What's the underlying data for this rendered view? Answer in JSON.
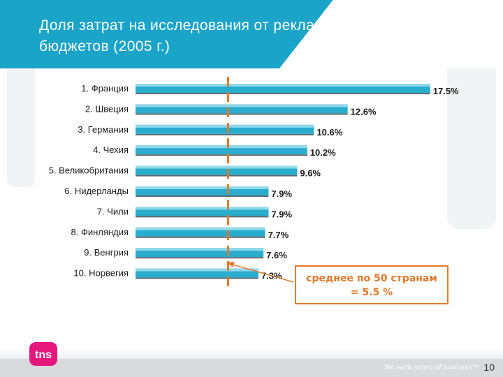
{
  "header": {
    "title_line1": "Доля затрат на исследования от рекламных",
    "title_line2": "бюджетов (2005 г.)"
  },
  "chart_data": {
    "type": "bar",
    "orientation": "horizontal",
    "categories": [
      "1. Франция",
      "2. Швеция",
      "3. Германия",
      "4. Чехия",
      "5. Великобритания",
      "6. Нидерланды",
      "7. Чили",
      "8. Финляндия",
      "9. Венгрия",
      "10. Норвегия"
    ],
    "values": [
      17.5,
      12.6,
      10.6,
      10.2,
      9.6,
      7.9,
      7.9,
      7.7,
      7.6,
      7.3
    ],
    "value_labels": [
      "17.5%",
      "12.6%",
      "10.6%",
      "10.2%",
      "9.6%",
      "7.9%",
      "7.9%",
      "7.7%",
      "7.6%",
      "7.3%"
    ],
    "reference_line": {
      "value": 5.5,
      "style": "dashed",
      "color": "#e07a2a"
    },
    "xlim": [
      0,
      18
    ],
    "bar_color": "#2aaccd"
  },
  "average_note": {
    "line1": "среднее по 50 странам",
    "line2": "= 5.5 %"
  },
  "footer": {
    "tagline": "the sixth sense of business™",
    "page_number": "10"
  },
  "logo": {
    "text": "tns",
    "color": "#e5177d"
  },
  "colors": {
    "header": "#1aa4c8",
    "accent": "#e07a2a"
  }
}
